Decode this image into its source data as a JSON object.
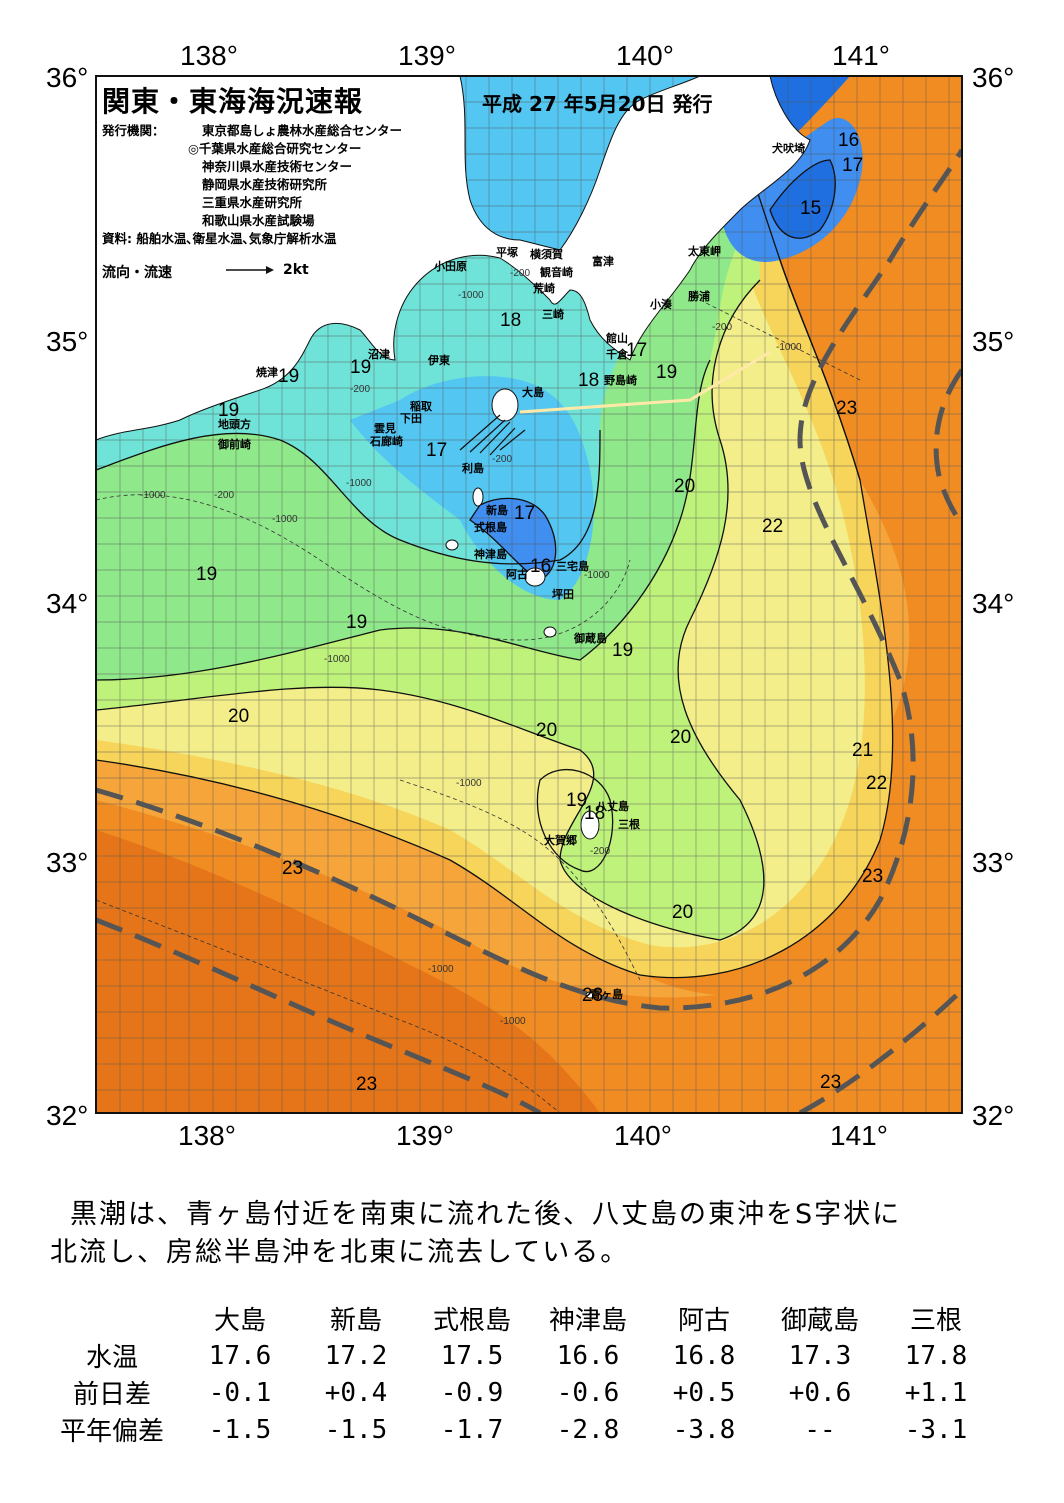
{
  "map": {
    "title": "関東・東海海況速報",
    "issue_date": "平成 27 年5月20日 発行",
    "issuers_label": "発行機関：",
    "issuers": [
      "東京都島しょ農林水産総合センター",
      "◎千葉県水産総合研究センター",
      "神奈川県水産技術センター",
      "静岡県水産技術研究所",
      "三重県水産研究所",
      "和歌山県水産試験場"
    ],
    "sources": "資料: 船舶水温､衛星水温､気象庁解析水温",
    "legend_flow": "流向・流速",
    "legend_speed": "2kt",
    "lon_labels": [
      "138°",
      "139°",
      "140°",
      "141°"
    ],
    "lat_labels": [
      "36°",
      "35°",
      "34°",
      "33°",
      "32°"
    ],
    "place_names": [
      "犬吠埼",
      "太東岬",
      "勝浦",
      "小湊",
      "富津",
      "館山",
      "千倉",
      "野島崎",
      "横須賀",
      "観音崎",
      "平塚",
      "荒崎",
      "三崎",
      "小田原",
      "伊東",
      "沼津",
      "焼津",
      "稲取",
      "下田",
      "雲見",
      "石廊崎",
      "地頭方",
      "御前崎",
      "大島",
      "利島",
      "新島",
      "式根島",
      "神津島",
      "三宅島",
      "阿古",
      "坪田",
      "御蔵島",
      "八丈島",
      "三根",
      "大賀郷",
      "青ヶ島"
    ],
    "isotherm_labels": [
      "16",
      "17",
      "15",
      "17",
      "18",
      "19",
      "19",
      "19",
      "18",
      "17",
      "17",
      "19",
      "20",
      "22",
      "23",
      "19",
      "16",
      "19",
      "19",
      "20",
      "20",
      "20",
      "21",
      "22",
      "19",
      "18",
      "23",
      "23",
      "20",
      "23",
      "23",
      "23"
    ],
    "depth_labels": [
      "-200",
      "-1000",
      "-200",
      "-1000",
      "-200",
      "-1000",
      "-1000",
      "-1000",
      "-200",
      "-1000",
      "-1000",
      "-200",
      "-200",
      "-1000",
      "-1000",
      "-1000"
    ],
    "colors": {
      "t15": "#1f6fe0",
      "t16": "#3f8ef0",
      "t17": "#53c6f2",
      "t18": "#6fe3d8",
      "t19": "#8fe88a",
      "t20": "#bff27a",
      "t21": "#f3ee8a",
      "t22": "#f7d45a",
      "t23": "#f5a53a",
      "t24": "#f08c22",
      "t25": "#e57518",
      "land": "#ffffff",
      "kuroshio_axis": "#555555"
    }
  },
  "summary": [
    "黒潮は、青ヶ島付近を南東に流れた後、八丈島の東沖をS字状に",
    "北流し、房総半島沖を北東に流去している。"
  ],
  "table": {
    "columns": [
      "大島",
      "新島",
      "式根島",
      "神津島",
      "阿古",
      "御蔵島",
      "三根"
    ],
    "rows": [
      {
        "label": "水温",
        "values": [
          "17.6",
          "17.2",
          "17.5",
          "16.6",
          "16.8",
          "17.3",
          "17.8"
        ]
      },
      {
        "label": "前日差",
        "values": [
          "-0.1",
          "+0.4",
          "-0.9",
          "-0.6",
          "+0.5",
          "+0.6",
          "+1.1"
        ]
      },
      {
        "label": "平年偏差",
        "values": [
          "-1.5",
          "-1.5",
          "-1.7",
          "-2.8",
          "-3.8",
          "--",
          "-3.1"
        ]
      }
    ]
  }
}
